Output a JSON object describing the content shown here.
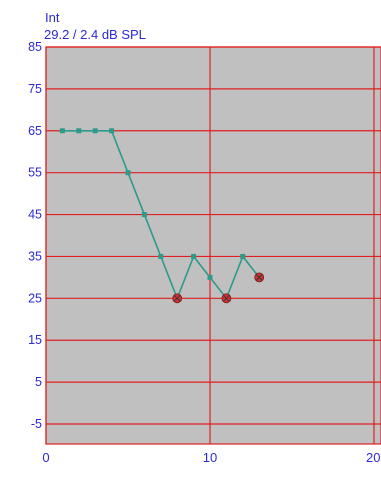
{
  "header": {
    "parameter": "Int",
    "threshold_text": "29.2 / 2.4 dB SPL"
  },
  "colors": {
    "plot_background": "#c0c0c0",
    "grid": "#e02020",
    "trace": "#2e9a8a",
    "reversal_marker": "#d03030",
    "header_text": "#2a2ad8",
    "tick_text": "#2a2ad8"
  },
  "chart_data": {
    "type": "line",
    "title": "",
    "xlabel": "",
    "ylabel": "",
    "xlim": [
      0,
      20
    ],
    "ylim": [
      -10,
      85
    ],
    "x_ticks": [
      0,
      10,
      20
    ],
    "x_tick_labels": [
      "0",
      "10",
      "20"
    ],
    "y_ticks": [
      85,
      75,
      65,
      55,
      45,
      35,
      25,
      15,
      5,
      -5
    ],
    "y_tick_labels": [
      "85",
      "75",
      "65",
      "55",
      "45",
      "35",
      "25",
      "15",
      "5",
      "-5"
    ],
    "grid": true,
    "series": [
      {
        "x": [
          1,
          2,
          3,
          4,
          5,
          6,
          7,
          8,
          9,
          10,
          11,
          12,
          13
        ],
        "y": [
          65,
          65,
          65,
          65,
          55,
          45,
          35,
          25,
          35,
          30,
          25,
          35,
          30
        ]
      }
    ],
    "reversal_points": [
      {
        "x": 8,
        "y": 25
      },
      {
        "x": 11,
        "y": 25
      },
      {
        "x": 13,
        "y": 30
      }
    ]
  }
}
